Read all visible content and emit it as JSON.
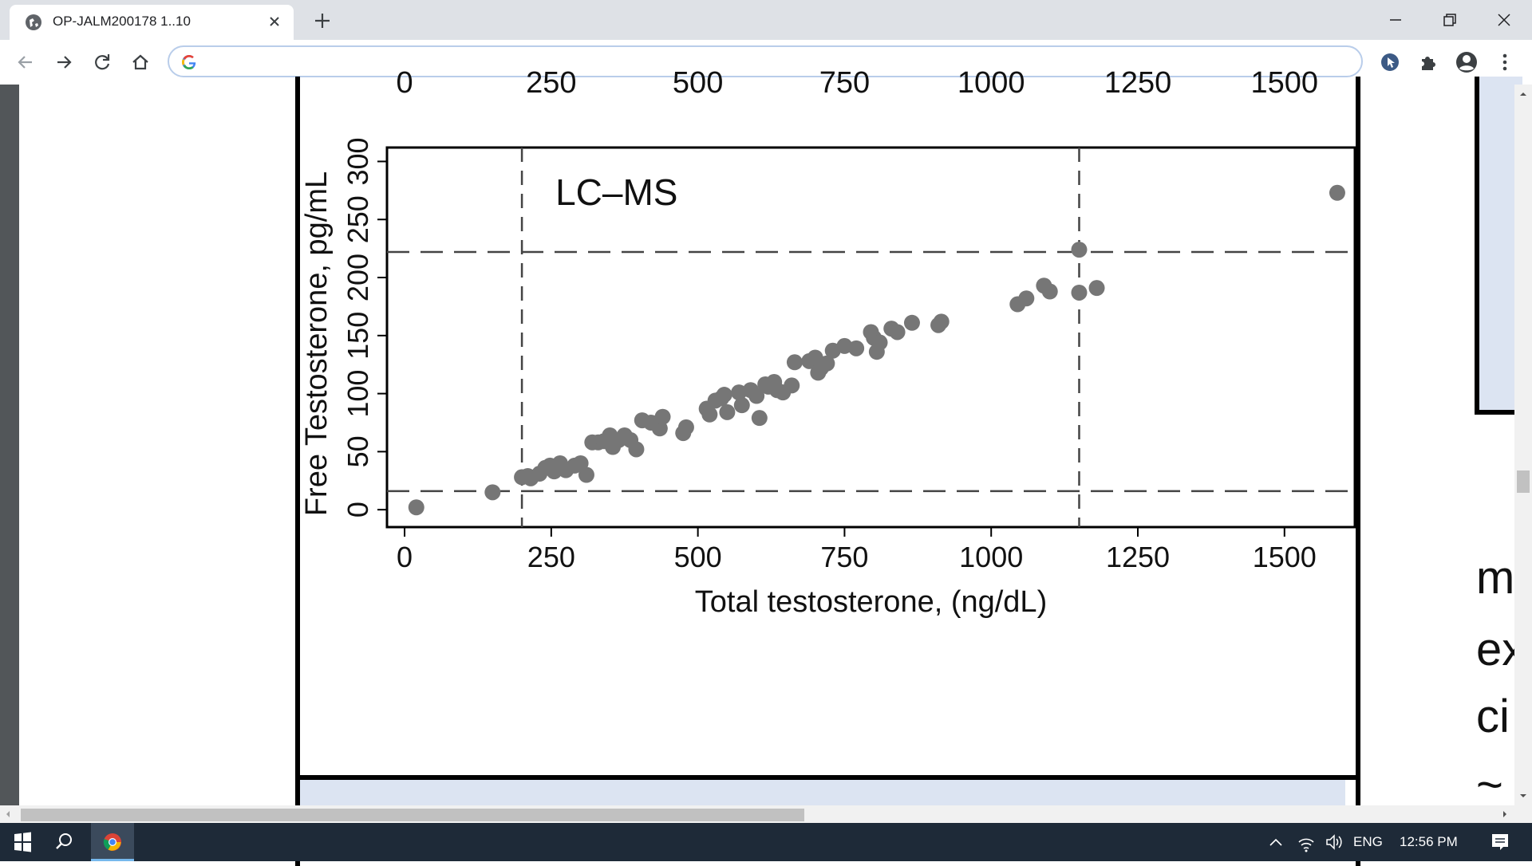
{
  "browser": {
    "tab_title": "OP-JALM200178 1..10",
    "address_value": "",
    "colors": {
      "titlebar": "#dee1e6",
      "accent": "#1a73e8"
    }
  },
  "icons": {
    "tab": "globe-icon",
    "close": "close-icon",
    "new_tab": "plus-icon",
    "back": "back-arrow-icon",
    "forward": "forward-arrow-icon",
    "reload": "reload-icon",
    "home": "home-icon",
    "search_engine": "google-g-icon",
    "extension_1": "cursor-extension-icon",
    "extensions": "puzzle-icon",
    "profile": "profile-icon",
    "menu": "kebab-menu-icon"
  },
  "chart_data": {
    "type": "scatter",
    "panel_label": "LC–MS",
    "xlabel": "Total testosterone, (ng/dL)",
    "ylabel": "Free Testosterone, pg/mL",
    "xlim": [
      -30,
      1620
    ],
    "ylim": [
      -15,
      312
    ],
    "x_ticks": [
      "0",
      "250",
      "500",
      "750",
      "1000",
      "1250",
      "1500"
    ],
    "y_ticks": [
      "0",
      "50",
      "100",
      "150",
      "200",
      "250",
      "300"
    ],
    "x_tick_values": [
      0,
      250,
      500,
      750,
      1000,
      1250,
      1500
    ],
    "y_tick_values": [
      0,
      50,
      100,
      150,
      200,
      250,
      300
    ],
    "ref_lines_x": [
      200,
      1150
    ],
    "ref_lines_y": [
      16,
      222
    ],
    "marker_color": "#767676",
    "top_axis_ticks": [
      "0",
      "250",
      "500",
      "750",
      "1000",
      "1250",
      "1500"
    ],
    "points": [
      [
        20,
        2
      ],
      [
        150,
        15
      ],
      [
        200,
        28
      ],
      [
        210,
        29
      ],
      [
        215,
        27
      ],
      [
        230,
        31
      ],
      [
        240,
        36
      ],
      [
        248,
        38
      ],
      [
        255,
        33
      ],
      [
        265,
        40
      ],
      [
        270,
        36
      ],
      [
        275,
        34
      ],
      [
        290,
        38
      ],
      [
        300,
        40
      ],
      [
        310,
        30
      ],
      [
        320,
        58
      ],
      [
        330,
        58
      ],
      [
        340,
        59
      ],
      [
        350,
        64
      ],
      [
        355,
        54
      ],
      [
        365,
        60
      ],
      [
        375,
        64
      ],
      [
        385,
        60
      ],
      [
        395,
        52
      ],
      [
        405,
        77
      ],
      [
        420,
        75
      ],
      [
        435,
        70
      ],
      [
        440,
        80
      ],
      [
        475,
        66
      ],
      [
        480,
        71
      ],
      [
        515,
        87
      ],
      [
        520,
        82
      ],
      [
        530,
        94
      ],
      [
        540,
        96
      ],
      [
        545,
        99
      ],
      [
        550,
        84
      ],
      [
        570,
        101
      ],
      [
        575,
        90
      ],
      [
        590,
        103
      ],
      [
        600,
        98
      ],
      [
        605,
        79
      ],
      [
        615,
        108
      ],
      [
        620,
        106
      ],
      [
        630,
        110
      ],
      [
        635,
        103
      ],
      [
        645,
        101
      ],
      [
        660,
        107
      ],
      [
        665,
        127
      ],
      [
        690,
        128
      ],
      [
        700,
        131
      ],
      [
        705,
        118
      ],
      [
        710,
        122
      ],
      [
        720,
        126
      ],
      [
        730,
        137
      ],
      [
        750,
        141
      ],
      [
        770,
        139
      ],
      [
        795,
        153
      ],
      [
        800,
        148
      ],
      [
        805,
        136
      ],
      [
        810,
        144
      ],
      [
        830,
        156
      ],
      [
        840,
        153
      ],
      [
        865,
        161
      ],
      [
        910,
        159
      ],
      [
        915,
        162
      ],
      [
        1045,
        177
      ],
      [
        1060,
        182
      ],
      [
        1090,
        193
      ],
      [
        1100,
        188
      ],
      [
        1150,
        224
      ],
      [
        1150,
        187
      ],
      [
        1180,
        191
      ],
      [
        1590,
        273
      ]
    ]
  },
  "page_side_text": [
    "m",
    "ex",
    "ci",
    "~"
  ],
  "taskbar": {
    "language": "ENG",
    "time": "12:56 PM",
    "colors": {
      "background": "#1e2a38"
    }
  }
}
